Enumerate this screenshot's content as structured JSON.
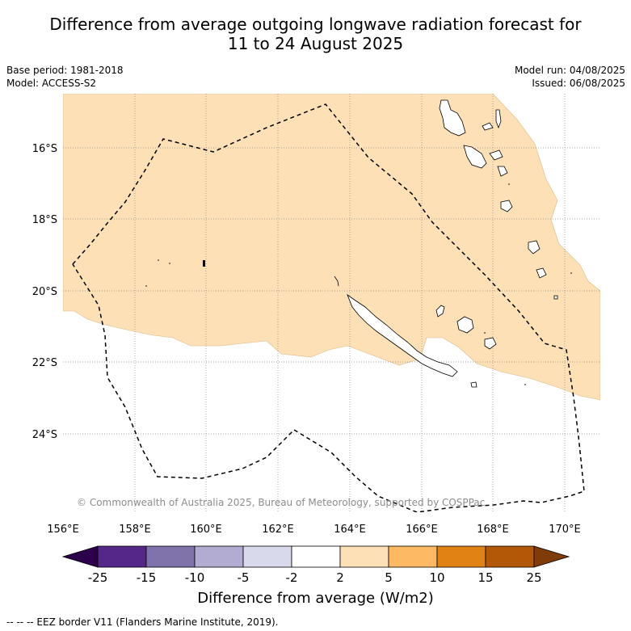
{
  "title_line1": "Difference from average outgoing longwave radiation forecast for",
  "title_line2": "11 to 24 August 2025",
  "base_period": "Base period: 1981-2018",
  "model": "Model: ACCESS-S2",
  "model_run": "Model run: 04/08/2025",
  "issued": "Issued: 06/08/2025",
  "copyright": "© Commonwealth of Australia 2025, Bureau of Meteorology, supported by COSPPac",
  "lon_ticks": [
    "156°E",
    "158°E",
    "160°E",
    "162°E",
    "164°E",
    "166°E",
    "168°E",
    "170°E"
  ],
  "lat_ticks": [
    "16°S",
    "18°S",
    "20°S",
    "22°S",
    "24°S"
  ],
  "colorbar": {
    "label": "Difference from average (W/m2)",
    "ticks": [
      "-25",
      "-15",
      "-10",
      "-5",
      "-2",
      "2",
      "5",
      "10",
      "15",
      "25"
    ],
    "colors": [
      "#2d004b",
      "#542788",
      "#8073ac",
      "#b2abd2",
      "#d8daeb",
      "#ffffff",
      "#fee0b6",
      "#fdb863",
      "#e08214",
      "#b35806",
      "#7f3b08"
    ]
  },
  "footer": "-- -- -- EEZ border V11 (Flanders Marine Institute, 2019).",
  "colors": {
    "anomaly_fill": "#fee0b6",
    "grid": "#888888"
  }
}
